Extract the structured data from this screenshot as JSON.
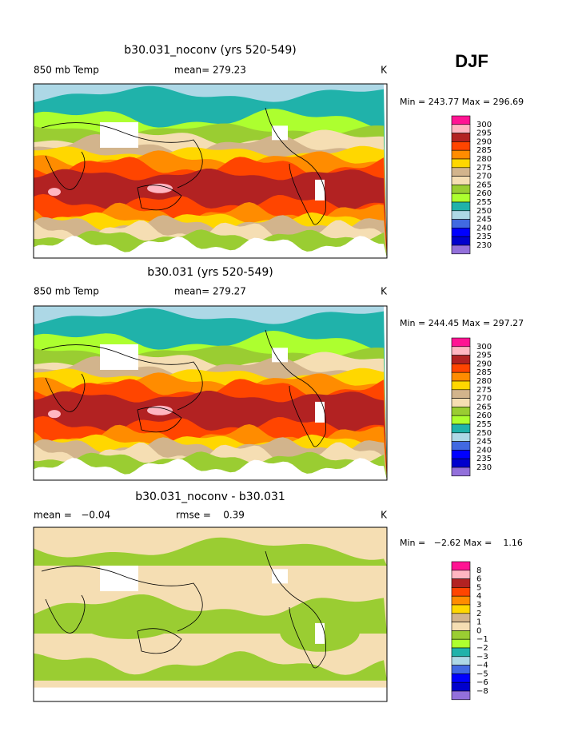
{
  "header": {
    "season": "DJF"
  },
  "panels": [
    {
      "title": "b30.031_noconv (yrs 520-549)",
      "left_label": "850 mb Temp",
      "center_label": "mean= 279.23",
      "right_label": "K",
      "range_label": "Min = 243.77 Max = 296.69",
      "colorbar": {
        "labels": [
          "300",
          "295",
          "290",
          "285",
          "280",
          "275",
          "270",
          "265",
          "260",
          "255",
          "250",
          "245",
          "240",
          "235",
          "230"
        ],
        "colors": [
          "#ff1493",
          "#ffb6c1",
          "#b22222",
          "#ff4500",
          "#ff8c00",
          "#ffd700",
          "#d2b48c",
          "#f5deb3",
          "#9acd32",
          "#adff2f",
          "#20b2aa",
          "#add8e6",
          "#4169e1",
          "#0000ff",
          "#0000cd",
          "#9370db"
        ]
      }
    },
    {
      "title": "b30.031 (yrs 520-549)",
      "left_label": "850 mb Temp",
      "center_label": "mean= 279.27",
      "right_label": "K",
      "range_label": "Min = 244.45 Max = 297.27",
      "colorbar": {
        "labels": [
          "300",
          "295",
          "290",
          "285",
          "280",
          "275",
          "270",
          "265",
          "260",
          "255",
          "250",
          "245",
          "240",
          "235",
          "230"
        ],
        "colors": [
          "#ff1493",
          "#ffb6c1",
          "#b22222",
          "#ff4500",
          "#ff8c00",
          "#ffd700",
          "#d2b48c",
          "#f5deb3",
          "#9acd32",
          "#adff2f",
          "#20b2aa",
          "#add8e6",
          "#4169e1",
          "#0000ff",
          "#0000cd",
          "#9370db"
        ]
      }
    },
    {
      "title": "b30.031_noconv - b30.031",
      "left_label": "mean =   −0.04",
      "center_label": "rmse =    0.39",
      "right_label": "K",
      "range_label": "Min =   −2.62 Max =    1.16",
      "colorbar": {
        "labels": [
          "8",
          "6",
          "5",
          "4",
          "3",
          "2",
          "1",
          "0",
          "−1",
          "−2",
          "−3",
          "−4",
          "−5",
          "−6",
          "−8"
        ],
        "colors": [
          "#ff1493",
          "#ffb6c1",
          "#b22222",
          "#ff4500",
          "#ff8c00",
          "#ffd700",
          "#d2b48c",
          "#f5deb3",
          "#9acd32",
          "#adff2f",
          "#20b2aa",
          "#add8e6",
          "#4169e1",
          "#0000ff",
          "#0000cd",
          "#9370db"
        ]
      }
    }
  ]
}
